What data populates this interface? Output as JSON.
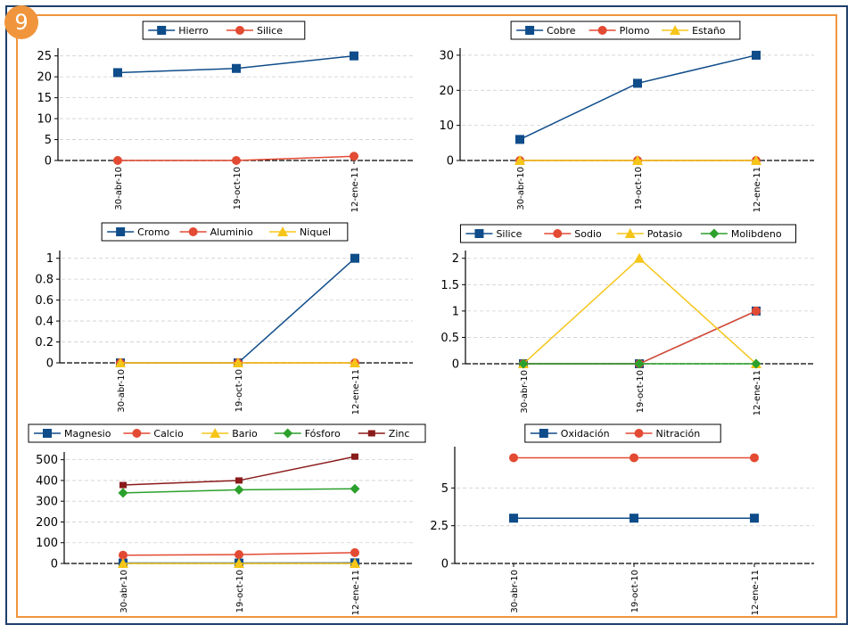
{
  "badge": "9",
  "colors": {
    "frame_outer": "#1f3f6b",
    "frame_inner": "#f0953c"
  },
  "chart_data": [
    {
      "type": "line",
      "categories": [
        "30-abr-10",
        "19-oct-10",
        "12-ene-11"
      ],
      "ylim": [
        0,
        26
      ],
      "yticks": [
        0,
        5,
        10,
        15,
        20,
        25
      ],
      "grid": true,
      "legend_position": "top-center",
      "series": [
        {
          "name": "Hierro",
          "values": [
            21,
            22,
            25
          ],
          "color": "#0f4c8a",
          "marker": "square"
        },
        {
          "name": "Silice",
          "values": [
            0,
            0,
            1
          ],
          "color": "#e34a33",
          "marker": "circle"
        }
      ]
    },
    {
      "type": "line",
      "categories": [
        "30-abr-10",
        "19-oct-10",
        "12-ene-11"
      ],
      "ylim": [
        0,
        31
      ],
      "yticks": [
        0,
        10,
        20,
        30
      ],
      "grid": true,
      "legend_position": "top-center",
      "series": [
        {
          "name": "Cobre",
          "values": [
            6,
            22,
            30
          ],
          "color": "#0f4c8a",
          "marker": "square"
        },
        {
          "name": "Plomo",
          "values": [
            0,
            0,
            0
          ],
          "color": "#e34a33",
          "marker": "circle"
        },
        {
          "name": "Estaño",
          "values": [
            0,
            0,
            0
          ],
          "color": "#f5c518",
          "marker": "triangle"
        }
      ]
    },
    {
      "type": "line",
      "categories": [
        "30-abr-10",
        "19-oct-10",
        "12-ene-11"
      ],
      "ylim": [
        0,
        1.04
      ],
      "yticks": [
        0,
        0.2,
        0.4,
        0.6,
        0.8,
        1
      ],
      "grid": true,
      "legend_position": "top-center",
      "series": [
        {
          "name": "Cromo",
          "values": [
            0,
            0,
            1
          ],
          "color": "#0f4c8a",
          "marker": "square"
        },
        {
          "name": "Aluminio",
          "values": [
            0,
            0,
            0
          ],
          "color": "#e34a33",
          "marker": "circle"
        },
        {
          "name": "Niquel",
          "values": [
            0,
            0,
            0
          ],
          "color": "#f5c518",
          "marker": "triangle"
        }
      ]
    },
    {
      "type": "line",
      "categories": [
        "30-abr-10",
        "19-oct-10",
        "12-ene-11"
      ],
      "ylim": [
        0,
        2.08
      ],
      "yticks": [
        0,
        0.5,
        1,
        1.5,
        2
      ],
      "grid": true,
      "legend_position": "top-center",
      "series": [
        {
          "name": "Silice",
          "values": [
            0,
            0,
            1
          ],
          "color": "#0f4c8a",
          "marker": "square"
        },
        {
          "name": "Sodio",
          "values": [
            0,
            0,
            1
          ],
          "color": "#e34a33",
          "marker": "circle"
        },
        {
          "name": "Potasio",
          "values": [
            0,
            2,
            0
          ],
          "color": "#f5c518",
          "marker": "triangle"
        },
        {
          "name": "Molibdeno",
          "values": [
            0,
            0,
            0
          ],
          "color": "#2ca02c",
          "marker": "diamond"
        }
      ]
    },
    {
      "type": "line",
      "categories": [
        "30-abr-10",
        "19-oct-10",
        "12-ene-11"
      ],
      "ylim": [
        0,
        520
      ],
      "yticks": [
        0,
        100,
        200,
        300,
        400,
        500
      ],
      "grid": true,
      "legend_position": "top-center",
      "series": [
        {
          "name": "Magnesio",
          "values": [
            2,
            2,
            3
          ],
          "color": "#0f4c8a",
          "marker": "square"
        },
        {
          "name": "Calcio",
          "values": [
            40,
            43,
            52
          ],
          "color": "#e34a33",
          "marker": "circle"
        },
        {
          "name": "Bario",
          "values": [
            0,
            0,
            0
          ],
          "color": "#f5c518",
          "marker": "triangle"
        },
        {
          "name": "Fósforo",
          "values": [
            340,
            355,
            360
          ],
          "color": "#2ca02c",
          "marker": "diamond"
        },
        {
          "name": "Zinc",
          "values": [
            378,
            400,
            515
          ],
          "color": "#8b1a1a",
          "marker": "smallsquare"
        }
      ]
    },
    {
      "type": "line",
      "categories": [
        "30-abr-10",
        "19-oct-10",
        "12-ene-11"
      ],
      "ylim": [
        0,
        7.5
      ],
      "yticks": [
        0,
        2.5,
        5
      ],
      "ytick_labels": [
        "0",
        "2.5",
        "5"
      ],
      "grid": true,
      "legend_position": "top-center",
      "series": [
        {
          "name": "Oxidación",
          "values": [
            3,
            3,
            3
          ],
          "color": "#0f4c8a",
          "marker": "square"
        },
        {
          "name": "Nitración",
          "values": [
            7,
            7,
            7
          ],
          "color": "#e34a33",
          "marker": "circle"
        }
      ]
    }
  ]
}
